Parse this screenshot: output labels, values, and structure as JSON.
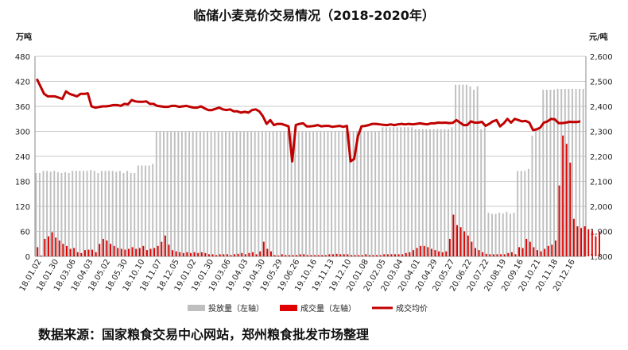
{
  "title": "临储小麦竞价交易情况（2018-2020年）",
  "source": "数据来源：国家粮食交易中心网站，郑州粮食批发市场整理",
  "chart_data": {
    "type": "bar",
    "title": "临储小麦竞价交易情况（2018-2020年）",
    "left_axis": {
      "unit": "万吨",
      "ylim": [
        0,
        480
      ],
      "ticks": [
        "0",
        "60",
        "120",
        "180",
        "240",
        "300",
        "360",
        "420",
        "480"
      ]
    },
    "right_axis": {
      "unit": "元/吨",
      "ylim": [
        1800,
        2600
      ],
      "ticks": [
        "1,800",
        "1,900",
        "2,000",
        "2,100",
        "2,200",
        "2,300",
        "2,400",
        "2,500",
        "2,600"
      ]
    },
    "grid": true,
    "legend_position": "bottom",
    "x_tick_labels": [
      "18.01.02",
      "18.01.30",
      "18.03.06",
      "18.04.03",
      "18.05.02",
      "18.05.30",
      "18.10.10",
      "18.11.07",
      "18.12.05",
      "19.01.02",
      "19.01.30",
      "19.03.06",
      "19.04.03",
      "19.04.30",
      "19.05.29",
      "19.06.26",
      "19.10.16",
      "19.11.13",
      "19.12.10",
      "20.01.08",
      "20.02.05",
      "20.03.04",
      "20.04.01",
      "20.04.29",
      "20.05.27",
      "20.06.22",
      "20.07.22",
      "20.08.19",
      "20.09.16",
      "20.10.21",
      "20.11.18",
      "20.12.16"
    ],
    "series": [
      {
        "name": "投放量（左轴）",
        "axis": "left",
        "kind": "bar",
        "values": [
          200,
          200,
          205,
          205,
          203,
          205,
          202,
          200,
          202,
          200,
          205,
          205,
          205,
          205,
          205,
          207,
          205,
          200,
          205,
          205,
          205,
          205,
          203,
          205,
          200,
          205,
          200,
          200,
          218,
          218,
          218,
          218,
          222,
          300,
          300,
          300,
          300,
          300,
          300,
          300,
          300,
          300,
          300,
          300,
          300,
          300,
          300,
          300,
          300,
          300,
          300,
          300,
          300,
          300,
          300,
          300,
          300,
          300,
          300,
          300,
          300,
          300,
          300,
          300,
          300,
          300,
          300,
          300,
          300,
          300,
          300,
          300,
          300,
          300,
          300,
          300,
          300,
          300,
          300,
          300,
          300,
          300,
          300,
          300,
          300,
          300,
          300,
          300,
          300,
          300,
          300,
          300,
          300,
          300,
          300,
          310,
          310,
          310,
          310,
          310,
          310,
          310,
          310,
          310,
          305,
          305,
          305,
          305,
          305,
          305,
          305,
          305,
          305,
          305,
          310,
          412,
          412,
          412,
          412,
          408,
          400,
          408,
          305,
          310,
          105,
          102,
          102,
          105,
          103,
          107,
          102,
          105,
          205,
          205,
          205,
          210,
          290,
          305,
          310,
          400,
          400,
          400,
          400,
          402,
          402,
          402,
          402,
          402,
          402,
          402,
          402
        ]
      },
      {
        "name": "成交量（左轴）",
        "axis": "left",
        "kind": "bar",
        "values": [
          22,
          2,
          42,
          48,
          58,
          45,
          38,
          30,
          25,
          18,
          20,
          10,
          8,
          15,
          16,
          16,
          10,
          30,
          42,
          38,
          30,
          25,
          20,
          18,
          16,
          18,
          22,
          18,
          20,
          25,
          15,
          18,
          20,
          25,
          35,
          50,
          28,
          15,
          12,
          10,
          8,
          10,
          8,
          10,
          8,
          10,
          8,
          5,
          5,
          3,
          5,
          5,
          5,
          3,
          5,
          6,
          8,
          5,
          8,
          10,
          5,
          12,
          35,
          18,
          12,
          3,
          2,
          5,
          3,
          3,
          3,
          3,
          5,
          5,
          3,
          3,
          3,
          3,
          3,
          3,
          5,
          5,
          6,
          5,
          5,
          5,
          3,
          3,
          3,
          3,
          5,
          3,
          3,
          3,
          3,
          5,
          5,
          5,
          5,
          5,
          5,
          8,
          10,
          15,
          20,
          25,
          25,
          22,
          18,
          15,
          12,
          10,
          12,
          42,
          100,
          75,
          70,
          60,
          50,
          35,
          20,
          15,
          10,
          6,
          5,
          5,
          5,
          5,
          5,
          8,
          10,
          5,
          22,
          20,
          42,
          35,
          22,
          15,
          12,
          18,
          25,
          28,
          38,
          170,
          290,
          270,
          225,
          90,
          72,
          68,
          72,
          65,
          62,
          48,
          60
        ]
      },
      {
        "name": "成交均价",
        "axis": "right",
        "kind": "line",
        "values": [
          2510,
          2480,
          2450,
          2440,
          2440,
          2440,
          2435,
          2430,
          2460,
          2450,
          2445,
          2440,
          2450,
          2450,
          2452,
          2400,
          2395,
          2397,
          2400,
          2400,
          2402,
          2405,
          2405,
          2402,
          2410,
          2408,
          2425,
          2420,
          2418,
          2418,
          2420,
          2410,
          2410,
          2402,
          2400,
          2398,
          2398,
          2402,
          2402,
          2398,
          2400,
          2402,
          2398,
          2395,
          2395,
          2400,
          2392,
          2385,
          2385,
          2390,
          2395,
          2388,
          2385,
          2388,
          2380,
          2380,
          2375,
          2378,
          2375,
          2385,
          2388,
          2380,
          2360,
          2330,
          2345,
          2325,
          2330,
          2330,
          2325,
          2320,
          2180,
          2325,
          2330,
          2332,
          2320,
          2320,
          2322,
          2325,
          2320,
          2322,
          2322,
          2318,
          2320,
          2322,
          2318,
          2322,
          2180,
          2190,
          2280,
          2320,
          2322,
          2325,
          2330,
          2330,
          2328,
          2326,
          2325,
          2328,
          2325,
          2328,
          2330,
          2328,
          2330,
          2328,
          2330,
          2332,
          2330,
          2328,
          2332,
          2332,
          2335,
          2334,
          2335,
          2333,
          2334,
          2345,
          2335,
          2325,
          2325,
          2340,
          2335,
          2335,
          2338,
          2322,
          2330,
          2340,
          2345,
          2320,
          2332,
          2350,
          2335,
          2350,
          2345,
          2340,
          2342,
          2335,
          2305,
          2308,
          2315,
          2335,
          2340,
          2350,
          2348,
          2333,
          2333,
          2335,
          2338,
          2337,
          2337,
          2340
        ]
      }
    ]
  }
}
